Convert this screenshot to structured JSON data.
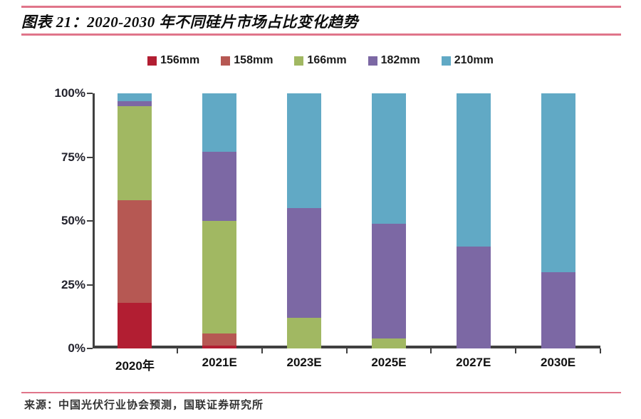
{
  "header": {
    "title": "图表 21：2020-2030 年不同硅片市场占比变化趋势"
  },
  "footer": {
    "source": "来源：中国光伏行业协会预测，国联证券研究所"
  },
  "colors": {
    "accent_rule": "#e0758a",
    "axis_line": "#404040",
    "series_156mm": "#b21e32",
    "series_158mm": "#b65853",
    "series_166mm": "#a1b862",
    "series_182mm": "#7c68a4",
    "series_210mm": "#61a9c5"
  },
  "chart_data": {
    "type": "bar",
    "stacked": true,
    "grid": false,
    "legend_position": "top",
    "title": "2020-2030 年不同硅片市场占比变化趋势",
    "xlabel": "",
    "ylabel": "",
    "ylim": [
      0,
      100
    ],
    "yticks": [
      {
        "value": 0,
        "label": "0%"
      },
      {
        "value": 25,
        "label": "25%"
      },
      {
        "value": 50,
        "label": "50%"
      },
      {
        "value": 75,
        "label": "75%"
      },
      {
        "value": 100,
        "label": "100%"
      }
    ],
    "categories": [
      "2020年",
      "2021E",
      "2023E",
      "2025E",
      "2027E",
      "2030E"
    ],
    "series": [
      {
        "name": "156mm",
        "color": "#b21e32",
        "values": [
          18,
          1,
          0,
          0,
          0,
          0
        ]
      },
      {
        "name": "158mm",
        "color": "#b65853",
        "values": [
          40,
          5,
          0,
          0,
          0,
          0
        ]
      },
      {
        "name": "166mm",
        "color": "#a1b862",
        "values": [
          37,
          44,
          12,
          4,
          0,
          0
        ]
      },
      {
        "name": "182mm",
        "color": "#7c68a4",
        "values": [
          2,
          27,
          43,
          45,
          40,
          30
        ]
      },
      {
        "name": "210mm",
        "color": "#61a9c5",
        "values": [
          3,
          23,
          45,
          51,
          60,
          70
        ]
      }
    ]
  }
}
